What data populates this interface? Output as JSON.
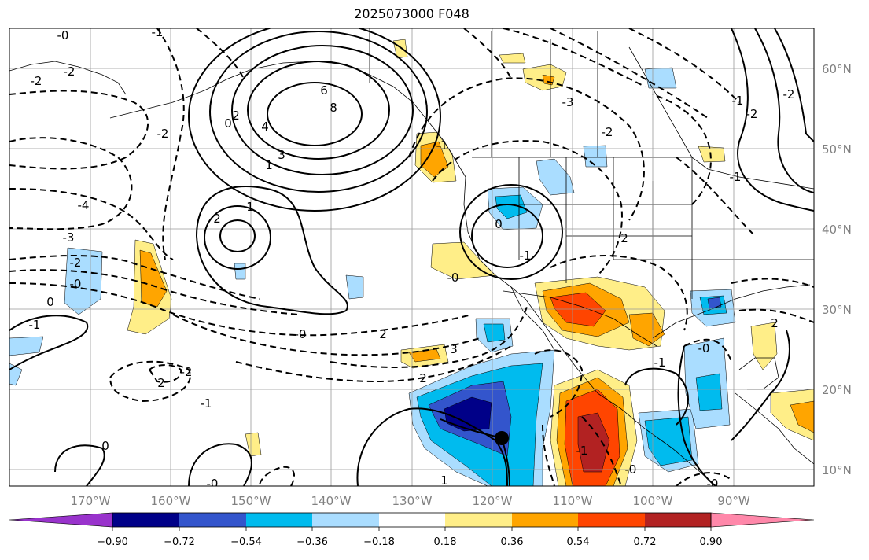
{
  "title": "2025073000 F048",
  "map": {
    "lon_range": [
      -180,
      -80
    ],
    "lat_range": [
      8,
      65
    ],
    "lat_labels": [
      "60°N",
      "50°N",
      "40°N",
      "30°N",
      "20°N",
      "10°N"
    ],
    "lon_labels": [
      "170°W",
      "160°W",
      "150°W",
      "140°W",
      "130°W",
      "120°W",
      "110°W",
      "100°W",
      "90°W"
    ],
    "gridlines": true,
    "contour_labels": [
      "6",
      "8",
      "4",
      "3",
      "1",
      "2",
      "1",
      "2",
      "0",
      "-2",
      "-2",
      "-2",
      "-4",
      "-3",
      "-2",
      "-0",
      "0",
      "-1",
      "-0",
      "2",
      "3",
      "2",
      "-2",
      "2",
      "-2",
      "-3",
      "2",
      "-1",
      "-0",
      "0",
      "-1",
      "-2",
      "-2",
      "-1",
      "-1",
      "2",
      "-1",
      "-1",
      "-0",
      "-0",
      "0",
      "-0",
      "-0",
      "1",
      "-1",
      "-0",
      "-1"
    ],
    "marker": {
      "lon": -119,
      "lat": 14,
      "color": "#000000"
    }
  },
  "colorbar": {
    "ticks": [
      "−0.90",
      "−0.72",
      "−0.54",
      "−0.36",
      "−0.18",
      "0.18",
      "0.36",
      "0.54",
      "0.72",
      "0.90"
    ],
    "colors": [
      "#9933cc",
      "#000088",
      "#3355cc",
      "#00bbee",
      "#aaddff",
      "#ffffff",
      "#ffee88",
      "#ffa500",
      "#ff4500",
      "#b22222",
      "#ff88aa"
    ]
  }
}
